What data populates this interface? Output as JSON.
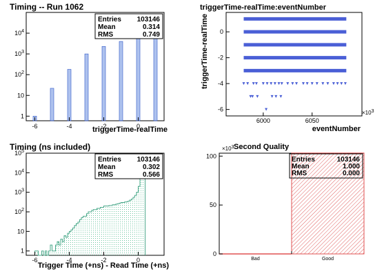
{
  "chart_data": [
    {
      "type": "bar",
      "title": "Timing -- Run 1062",
      "xlabel": "triggerTime-realTime",
      "ylabel": "",
      "x_ticks": [
        "-6",
        "-4",
        "-2",
        "0"
      ],
      "y_scale": "log",
      "y_ticks": [
        "1",
        "10",
        "10^2",
        "10^3",
        "10^4"
      ],
      "xlim": [
        -6.5,
        1.5
      ],
      "ylim": [
        0.6,
        100000
      ],
      "categories": [
        -6,
        -5,
        -4,
        -3,
        -2,
        -1,
        0,
        1
      ],
      "values": [
        1,
        22,
        180,
        1000,
        2300,
        4000,
        60000,
        37000
      ],
      "bar_color": "#6c8fe0",
      "stats": {
        "labels": [
          "Entries",
          "Mean",
          "RMS"
        ],
        "values": [
          "103146",
          "0.314",
          "0.749"
        ]
      }
    },
    {
      "type": "scatter",
      "title": "triggerTime-realTime:eventNumber",
      "xlabel": "eventNumber",
      "ylabel": "triggerTime-realTime",
      "x_ticks": [
        "6000",
        "6050"
      ],
      "x_exponent": "×10^3",
      "y_ticks": [
        "-6",
        "-4",
        "-2",
        "0"
      ],
      "xlim": [
        5962,
        6101
      ],
      "ylim": [
        -6.5,
        1.5
      ],
      "marker_color": "#4a5fd6",
      "dense_bands": [
        {
          "y": 1,
          "x_from": 5980,
          "x_to": 6085
        },
        {
          "y": 0,
          "x_from": 5980,
          "x_to": 6085
        },
        {
          "y": -1,
          "x_from": 5980,
          "x_to": 6085
        },
        {
          "y": -2,
          "x_from": 5980,
          "x_to": 6085
        },
        {
          "y": -3,
          "x_from": 5980,
          "x_to": 6085
        }
      ],
      "points": [
        [
          5980,
          -4
        ],
        [
          5984,
          -4
        ],
        [
          5990,
          -4
        ],
        [
          5993,
          -4
        ],
        [
          6000,
          -4
        ],
        [
          6004,
          -4
        ],
        [
          6008,
          -4
        ],
        [
          6012,
          -4
        ],
        [
          6016,
          -4
        ],
        [
          6019,
          -4
        ],
        [
          6025,
          -4
        ],
        [
          6030,
          -4
        ],
        [
          6034,
          -4
        ],
        [
          6041,
          -4
        ],
        [
          6045,
          -4
        ],
        [
          6050,
          -4
        ],
        [
          6055,
          -4
        ],
        [
          6061,
          -4
        ],
        [
          6066,
          -4
        ],
        [
          6072,
          -4
        ],
        [
          6076,
          -4
        ],
        [
          6080,
          -4
        ],
        [
          6084,
          -4
        ],
        [
          5987,
          -5
        ],
        [
          5989,
          -5
        ],
        [
          5994,
          -5
        ],
        [
          6009,
          -5
        ],
        [
          6013,
          -5
        ],
        [
          6018,
          -5
        ],
        [
          6003,
          -6
        ]
      ]
    },
    {
      "type": "area",
      "title": "Timing (ns included)",
      "xlabel": "Trigger Time (+ns) - Read Time (+ns)",
      "ylabel": "",
      "x_ticks": [
        "-6",
        "-4",
        "-2",
        "0"
      ],
      "y_scale": "log",
      "y_ticks": [
        "1",
        "10",
        "10^2",
        "10^3",
        "10^4",
        "10^5"
      ],
      "xlim": [
        -6.5,
        1.5
      ],
      "ylim": [
        0.6,
        100000
      ],
      "x": [
        -6.0,
        -5.9,
        -5.8,
        -5.7,
        -5.6,
        -5.5,
        -5.4,
        -5.3,
        -5.2,
        -5.1,
        -5.0,
        -4.9,
        -4.8,
        -4.7,
        -4.6,
        -4.5,
        -4.4,
        -4.3,
        -4.2,
        -4.1,
        -4.0,
        -3.9,
        -3.8,
        -3.7,
        -3.6,
        -3.5,
        -3.4,
        -3.3,
        -3.2,
        -3.1,
        -3.0,
        -2.9,
        -2.8,
        -2.7,
        -2.6,
        -2.5,
        -2.4,
        -2.3,
        -2.2,
        -2.1,
        -2.0,
        -1.9,
        -1.8,
        -1.7,
        -1.6,
        -1.5,
        -1.4,
        -1.3,
        -1.2,
        -1.1,
        -1.0,
        -0.9,
        -0.8,
        -0.7,
        -0.6,
        -0.5,
        -0.4,
        -0.3,
        -0.2,
        -0.1,
        0.0,
        0.1,
        0.2,
        0.3
      ],
      "values": [
        1,
        1,
        0,
        0,
        1,
        0,
        1,
        0,
        1,
        2,
        1,
        1,
        2,
        3,
        2,
        4,
        3,
        6,
        5,
        8,
        10,
        12,
        15,
        20,
        25,
        30,
        40,
        50,
        60,
        60,
        80,
        100,
        100,
        120,
        130,
        130,
        150,
        150,
        170,
        170,
        200,
        200,
        200,
        210,
        210,
        230,
        230,
        250,
        260,
        280,
        300,
        300,
        320,
        330,
        350,
        400,
        450,
        550,
        700,
        1000,
        2000,
        5000,
        20000,
        8000
      ],
      "line_color": "#4aa88a",
      "fill_color": "#c8ecdf",
      "stats": {
        "labels": [
          "Entries",
          "Mean",
          "RMS"
        ],
        "values": [
          "103146",
          "0.302",
          "0.566"
        ]
      }
    },
    {
      "type": "bar",
      "title": "Second Quality",
      "xlabel": "",
      "ylabel": "",
      "y_exponent": "×10^3",
      "categories": [
        "Bad",
        "Good"
      ],
      "values": [
        0,
        103146
      ],
      "y_ticks": [
        "0",
        "50",
        "100"
      ],
      "ylim": [
        0,
        103000
      ],
      "bar_color": "#e05050",
      "stats": {
        "labels": [
          "Entries",
          "Mean",
          "RMS"
        ],
        "values": [
          "103146",
          "1.000",
          "0.000"
        ]
      }
    }
  ]
}
